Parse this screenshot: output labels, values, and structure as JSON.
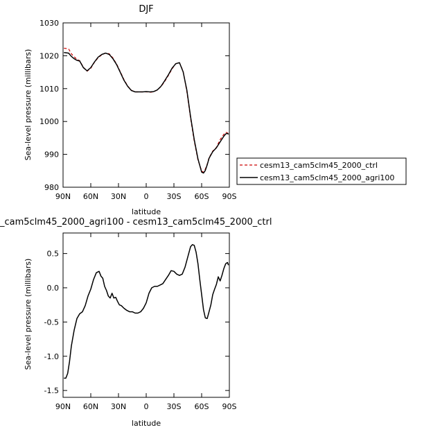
{
  "colors": {
    "ctrl": "#cc0000",
    "agri100": "#000000"
  },
  "chart_data": [
    {
      "type": "line",
      "title": "DJF",
      "xlabel": "latitude",
      "ylabel": "Sea-level pressure (millibars)",
      "xlim": [
        90,
        -90
      ],
      "ylim": [
        980,
        1030
      ],
      "xticks": [
        90,
        60,
        30,
        0,
        -30,
        -60,
        -90
      ],
      "xtick_labels": [
        "90N",
        "60N",
        "30N",
        "0",
        "30S",
        "60S",
        "90S"
      ],
      "yticks": [
        980,
        990,
        1000,
        1010,
        1020,
        1030
      ],
      "ytick_labels": [
        "980",
        "990",
        "1000",
        "1010",
        "1020",
        "1030"
      ],
      "grid": false,
      "legend": "right",
      "series": [
        {
          "name": "cesm13_cam5clm45_2000_ctrl",
          "color": "#cc0000",
          "dash": true,
          "x": [
            89,
            84,
            81,
            78,
            75,
            72,
            68,
            64,
            60,
            56,
            52,
            48,
            44,
            40,
            36,
            32,
            28,
            24,
            20,
            16,
            12,
            8,
            4,
            0,
            -4,
            -8,
            -12,
            -16,
            -20,
            -24,
            -28,
            -32,
            -36,
            -40,
            -44,
            -48,
            -52,
            -56,
            -60,
            -62,
            -64,
            -66,
            -68,
            -72,
            -76,
            -80,
            -84,
            -86,
            -88,
            -89
          ],
          "y": [
            1022.3,
            1022.1,
            1020.6,
            1019.7,
            1018.9,
            1018.5,
            1016.5,
            1015.3,
            1016.2,
            1018,
            1019.4,
            1020.3,
            1020.8,
            1020.6,
            1019.3,
            1017.5,
            1015.1,
            1012.7,
            1010.8,
            1009.5,
            1009,
            1009,
            1009,
            1009,
            1008.9,
            1009,
            1009.6,
            1010.6,
            1012.2,
            1014,
            1016,
            1017.6,
            1017.9,
            1015.3,
            1009,
            1001,
            994,
            988.3,
            985,
            984.5,
            985.5,
            987,
            989,
            991,
            992.1,
            994.5,
            996.1,
            996.7,
            996.5,
            996.3
          ]
        },
        {
          "name": "cesm13_cam5clm45_2000_agri100",
          "color": "#000000",
          "dash": false,
          "x": [
            89,
            84,
            81,
            78,
            75,
            72,
            68,
            64,
            60,
            56,
            52,
            48,
            44,
            40,
            36,
            32,
            28,
            24,
            20,
            16,
            12,
            8,
            4,
            0,
            -4,
            -8,
            -12,
            -16,
            -20,
            -24,
            -28,
            -32,
            -36,
            -40,
            -44,
            -48,
            -52,
            -56,
            -60,
            -62,
            -64,
            -66,
            -68,
            -72,
            -76,
            -80,
            -84,
            -86,
            -88,
            -89
          ],
          "y": [
            1021,
            1020.8,
            1019.8,
            1019.1,
            1018.6,
            1018.4,
            1016.4,
            1015.4,
            1016.4,
            1018.1,
            1019.6,
            1020.4,
            1020.8,
            1020.4,
            1019.1,
            1017.3,
            1014.9,
            1012.5,
            1010.7,
            1009.4,
            1009,
            1009,
            1009,
            1009.1,
            1009,
            1009.1,
            1009.6,
            1010.7,
            1012.4,
            1014.2,
            1016.2,
            1017.6,
            1017.9,
            1015.1,
            1009.5,
            1001.5,
            994.5,
            988.6,
            984.6,
            984.3,
            985.1,
            986.8,
            988.8,
            990.8,
            992,
            993.8,
            995.5,
            996.2,
            996.4,
            996.1
          ]
        }
      ]
    },
    {
      "type": "line",
      "title": "_cam5clm45_2000_agri100 - cesm13_cam5clm45_2000_ctrl",
      "xlabel": "latitude",
      "ylabel": "Sea-level pressure (millibars)",
      "xlim": [
        90,
        -90
      ],
      "ylim": [
        -1.6,
        0.8
      ],
      "xticks": [
        90,
        60,
        30,
        0,
        -30,
        -60,
        -90
      ],
      "xtick_labels": [
        "90N",
        "60N",
        "30N",
        "0",
        "30S",
        "60S",
        "90S"
      ],
      "yticks": [
        -1.5,
        -1,
        -0.5,
        0,
        0.5
      ],
      "ytick_labels": [
        "-1.5",
        "-1.0",
        "-0.5",
        "0.0",
        "0.5"
      ],
      "grid": false,
      "series": [
        {
          "color": "#000000",
          "dash": false,
          "x": [
            89,
            87,
            85,
            83,
            81,
            78,
            75,
            72,
            69,
            66,
            63,
            60,
            57,
            54,
            51,
            49,
            47,
            45,
            43,
            41,
            39,
            37,
            35,
            33,
            31,
            29,
            27,
            24,
            21,
            18,
            15,
            12,
            9,
            6,
            3,
            0,
            -3,
            -6,
            -9,
            -12,
            -15,
            -18,
            -21,
            -24,
            -27,
            -30,
            -33,
            -36,
            -39,
            -42,
            -45,
            -48,
            -50,
            -52,
            -54,
            -56,
            -58,
            -60,
            -62,
            -64,
            -66,
            -68,
            -70,
            -72,
            -74,
            -76,
            -78,
            -80,
            -82,
            -84,
            -86,
            -88,
            -89
          ],
          "y": [
            -1.32,
            -1.32,
            -1.25,
            -1.08,
            -0.85,
            -0.62,
            -0.45,
            -0.38,
            -0.35,
            -0.26,
            -0.12,
            -0.02,
            0.12,
            0.22,
            0.24,
            0.17,
            0.14,
            0.02,
            -0.04,
            -0.12,
            -0.15,
            -0.08,
            -0.15,
            -0.14,
            -0.2,
            -0.25,
            -0.26,
            -0.3,
            -0.33,
            -0.35,
            -0.35,
            -0.37,
            -0.37,
            -0.35,
            -0.3,
            -0.22,
            -0.08,
            0,
            0.02,
            0.02,
            0.04,
            0.06,
            0.12,
            0.18,
            0.25,
            0.24,
            0.2,
            0.18,
            0.2,
            0.3,
            0.45,
            0.6,
            0.63,
            0.62,
            0.52,
            0.35,
            0.12,
            -0.1,
            -0.32,
            -0.44,
            -0.45,
            -0.35,
            -0.25,
            -0.1,
            -0.02,
            0.05,
            0.16,
            0.1,
            0.18,
            0.28,
            0.35,
            0.37,
            0.33
          ]
        }
      ]
    }
  ]
}
